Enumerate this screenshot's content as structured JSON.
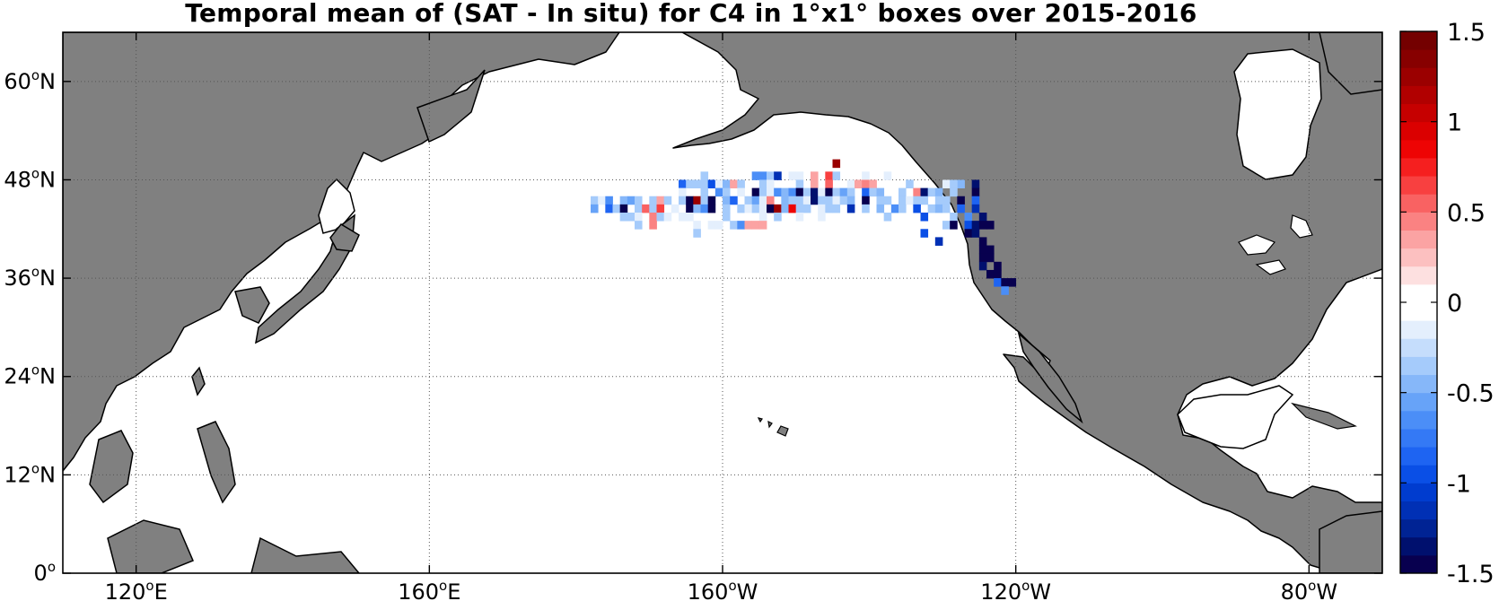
{
  "title": "Temporal mean of (SAT - In situ) for C4 in 1°x1° boxes over 2015-2016",
  "map": {
    "projection": "equirectangular",
    "lon_range": [
      110,
      -70
    ],
    "lat_range": [
      0,
      66
    ],
    "grid": true,
    "land_color": "#808080",
    "ocean_color": "#ffffff"
  },
  "axes": {
    "x_ticks": [
      {
        "lon": 120,
        "label": "120",
        "sup": "o",
        "hemi": "E"
      },
      {
        "lon": 160,
        "label": "160",
        "sup": "o",
        "hemi": "E"
      },
      {
        "lon": -160,
        "label": "160",
        "sup": "o",
        "hemi": "W"
      },
      {
        "lon": -120,
        "label": "120",
        "sup": "o",
        "hemi": "W"
      },
      {
        "lon": -80,
        "label": "80",
        "sup": "o",
        "hemi": "W"
      }
    ],
    "y_ticks": [
      {
        "lat": 0,
        "label": "0",
        "sup": "o",
        "hemi": ""
      },
      {
        "lat": 12,
        "label": "12",
        "sup": "o",
        "hemi": "N"
      },
      {
        "lat": 24,
        "label": "24",
        "sup": "o",
        "hemi": "N"
      },
      {
        "lat": 36,
        "label": "36",
        "sup": "o",
        "hemi": "N"
      },
      {
        "lat": 48,
        "label": "48",
        "sup": "o",
        "hemi": "N"
      },
      {
        "lat": 60,
        "label": "60",
        "sup": "o",
        "hemi": "N"
      }
    ]
  },
  "colorbar": {
    "range": [
      -1.5,
      1.5
    ],
    "tick_labels": [
      {
        "value": 1.5,
        "label": "1.5"
      },
      {
        "value": 1,
        "label": "1"
      },
      {
        "value": 0.5,
        "label": "0.5"
      },
      {
        "value": 0,
        "label": "0"
      },
      {
        "value": -0.5,
        "label": "-0.5"
      },
      {
        "value": -1,
        "label": "-1"
      },
      {
        "value": -1.5,
        "label": "-1.5"
      }
    ],
    "colors": [
      "#08004f",
      "#00106e",
      "#002394",
      "#0030b5",
      "#003ccf",
      "#0a4fe6",
      "#1e64f2",
      "#3479f5",
      "#4b8ef7",
      "#67a3f8",
      "#86b7f9",
      "#a5cbfb",
      "#c5ddfc",
      "#e4effd",
      "#ffffff",
      "#ffffff",
      "#fde0e0",
      "#fcc0c0",
      "#fba3a3",
      "#fa8282",
      "#f96262",
      "#f84040",
      "#f51f1f",
      "#ee0404",
      "#db0000",
      "#c60000",
      "#b10000",
      "#9b0000",
      "#870000",
      "#740000"
    ]
  },
  "chart_data": {
    "type": "heatmap",
    "title": "Temporal mean of (SAT - In situ) for C4 in 1°x1° boxes over 2015-2016",
    "x_ticks": [
      "120°E",
      "160°E",
      "160°W",
      "120°W",
      "80°W"
    ],
    "y_ticks": [
      "0°",
      "12°N",
      "24°N",
      "36°N",
      "48°N",
      "60°N"
    ],
    "color_range": [
      -1.5,
      1.5
    ],
    "colorbar_ticks": [
      "-1.5",
      "-1",
      "-0.5",
      "0",
      "0.5",
      "1",
      "1.5"
    ],
    "cells": [
      {
        "lon": -145,
        "lat": 49.5,
        "v": 1.2
      },
      {
        "lon": -163,
        "lat": 48.0,
        "v": -0.3
      },
      {
        "lon": -156,
        "lat": 48.0,
        "v": -0.7
      },
      {
        "lon": -155,
        "lat": 48.0,
        "v": -0.7
      },
      {
        "lon": -154,
        "lat": 48.0,
        "v": -0.4
      },
      {
        "lon": -153,
        "lat": 48.0,
        "v": -1.2
      },
      {
        "lon": -151,
        "lat": 48.0,
        "v": -0.1
      },
      {
        "lon": -150,
        "lat": 48.0,
        "v": -0.1
      },
      {
        "lon": -148,
        "lat": 48.0,
        "v": 0.3
      },
      {
        "lon": -146,
        "lat": 48.0,
        "v": 0.6
      },
      {
        "lon": -145,
        "lat": 48.0,
        "v": -0.3
      },
      {
        "lon": -141,
        "lat": 48.0,
        "v": -0.2
      },
      {
        "lon": -138,
        "lat": 48.0,
        "v": -0.2
      },
      {
        "lon": -135,
        "lat": 47.0,
        "v": -0.3
      },
      {
        "lon": -128,
        "lat": 47.0,
        "v": -0.5
      },
      {
        "lon": -126,
        "lat": 47.0,
        "v": -1.4
      },
      {
        "lon": -166,
        "lat": 47.0,
        "v": -0.8
      },
      {
        "lon": -165,
        "lat": 47.0,
        "v": -0.3
      },
      {
        "lon": -164,
        "lat": 47.0,
        "v": -0.3
      },
      {
        "lon": -163,
        "lat": 47.0,
        "v": -0.3
      },
      {
        "lon": -162,
        "lat": 47.0,
        "v": -0.9
      },
      {
        "lon": -161,
        "lat": 47.0,
        "v": -0.2
      },
      {
        "lon": -160,
        "lat": 47.0,
        "v": -0.5
      },
      {
        "lon": -159,
        "lat": 47.0,
        "v": 0.3
      },
      {
        "lon": -158,
        "lat": 47.0,
        "v": -0.3
      },
      {
        "lon": -155,
        "lat": 47.0,
        "v": -0.3
      },
      {
        "lon": -154,
        "lat": 47.0,
        "v": -0.1
      },
      {
        "lon": -150,
        "lat": 47.0,
        "v": -0.4
      },
      {
        "lon": -148,
        "lat": 47.0,
        "v": 0.3
      },
      {
        "lon": -146,
        "lat": 47.0,
        "v": 0.5
      },
      {
        "lon": -143,
        "lat": 47.0,
        "v": -0.2
      },
      {
        "lon": -142,
        "lat": 47.0,
        "v": 0.3
      },
      {
        "lon": -141,
        "lat": 47.0,
        "v": 0.4
      },
      {
        "lon": -140,
        "lat": 47.0,
        "v": 0.3
      },
      {
        "lon": -130,
        "lat": 47.0,
        "v": -0.2
      },
      {
        "lon": -129,
        "lat": 47.0,
        "v": -0.4
      },
      {
        "lon": -166,
        "lat": 46.0,
        "v": -0.1
      },
      {
        "lon": -163,
        "lat": 46.0,
        "v": -0.4
      },
      {
        "lon": -161,
        "lat": 46.0,
        "v": -0.7
      },
      {
        "lon": -160,
        "lat": 46.0,
        "v": -0.3
      },
      {
        "lon": -158,
        "lat": 46.0,
        "v": -0.2
      },
      {
        "lon": -156,
        "lat": 46.0,
        "v": -1.5
      },
      {
        "lon": -155,
        "lat": 46.0,
        "v": -0.3
      },
      {
        "lon": -154,
        "lat": 46.0,
        "v": -0.1
      },
      {
        "lon": -153,
        "lat": 46.0,
        "v": -0.7
      },
      {
        "lon": -152,
        "lat": 46.0,
        "v": -0.5
      },
      {
        "lon": -151,
        "lat": 46.0,
        "v": -0.7
      },
      {
        "lon": -150,
        "lat": 46.0,
        "v": -1.5
      },
      {
        "lon": -149,
        "lat": 46.0,
        "v": -0.3
      },
      {
        "lon": -148,
        "lat": 46.0,
        "v": -1.4
      },
      {
        "lon": -147,
        "lat": 46.0,
        "v": -0.2
      },
      {
        "lon": -146,
        "lat": 46.0,
        "v": -1.5
      },
      {
        "lon": -145,
        "lat": 46.0,
        "v": -0.3
      },
      {
        "lon": -144,
        "lat": 46.0,
        "v": -0.6
      },
      {
        "lon": -143,
        "lat": 46.0,
        "v": -0.4
      },
      {
        "lon": -141,
        "lat": 46.0,
        "v": -0.8
      },
      {
        "lon": -140,
        "lat": 46.0,
        "v": -0.3
      },
      {
        "lon": -139,
        "lat": 46.0,
        "v": -0.5
      },
      {
        "lon": -136,
        "lat": 46.0,
        "v": -0.3
      },
      {
        "lon": -134,
        "lat": 46.0,
        "v": 0.4
      },
      {
        "lon": -133,
        "lat": 46.0,
        "v": -1.4
      },
      {
        "lon": -132,
        "lat": 46.0,
        "v": -0.3
      },
      {
        "lon": -131,
        "lat": 46.0,
        "v": -0.5
      },
      {
        "lon": -129,
        "lat": 46.0,
        "v": -0.3
      },
      {
        "lon": -126,
        "lat": 46.0,
        "v": -1.5
      },
      {
        "lon": -178,
        "lat": 45.0,
        "v": -0.4
      },
      {
        "lon": -177,
        "lat": 45.0,
        "v": -0.2
      },
      {
        "lon": -176,
        "lat": 45.0,
        "v": -0.7
      },
      {
        "lon": -174,
        "lat": 45.0,
        "v": -0.5
      },
      {
        "lon": -173,
        "lat": 45.0,
        "v": -0.6
      },
      {
        "lon": -172,
        "lat": 45.0,
        "v": -0.3
      },
      {
        "lon": -170,
        "lat": 45.0,
        "v": -0.3
      },
      {
        "lon": -169,
        "lat": 45.0,
        "v": 0.3
      },
      {
        "lon": -168,
        "lat": 45.0,
        "v": -0.3
      },
      {
        "lon": -166,
        "lat": 45.0,
        "v": -0.3
      },
      {
        "lon": -165,
        "lat": 45.0,
        "v": -1.5
      },
      {
        "lon": -164,
        "lat": 45.0,
        "v": 1.3
      },
      {
        "lon": -163,
        "lat": 45.0,
        "v": -0.4
      },
      {
        "lon": -162,
        "lat": 45.0,
        "v": -1.5
      },
      {
        "lon": -160,
        "lat": 45.0,
        "v": -0.5
      },
      {
        "lon": -159,
        "lat": 45.0,
        "v": -0.8
      },
      {
        "lon": -157,
        "lat": 45.0,
        "v": -0.3
      },
      {
        "lon": -156,
        "lat": 45.0,
        "v": -0.6
      },
      {
        "lon": -155,
        "lat": 45.0,
        "v": -0.2
      },
      {
        "lon": -154,
        "lat": 45.0,
        "v": 0.4
      },
      {
        "lon": -152,
        "lat": 45.0,
        "v": -0.5
      },
      {
        "lon": -151,
        "lat": 45.0,
        "v": -0.3
      },
      {
        "lon": -150,
        "lat": 45.0,
        "v": -0.4
      },
      {
        "lon": -149,
        "lat": 45.0,
        "v": -0.2
      },
      {
        "lon": -148,
        "lat": 45.0,
        "v": -1.4
      },
      {
        "lon": -147,
        "lat": 45.0,
        "v": -0.3
      },
      {
        "lon": -146,
        "lat": 45.0,
        "v": -0.4
      },
      {
        "lon": -145,
        "lat": 45.0,
        "v": -0.2
      },
      {
        "lon": -144,
        "lat": 45.0,
        "v": -0.3
      },
      {
        "lon": -143,
        "lat": 45.0,
        "v": -0.5
      },
      {
        "lon": -141,
        "lat": 45.0,
        "v": -1.5
      },
      {
        "lon": -139,
        "lat": 45.0,
        "v": -0.3
      },
      {
        "lon": -138,
        "lat": 45.0,
        "v": -0.3
      },
      {
        "lon": -136,
        "lat": 45.0,
        "v": -0.3
      },
      {
        "lon": -135,
        "lat": 45.0,
        "v": -0.2
      },
      {
        "lon": -134,
        "lat": 45.0,
        "v": -0.3
      },
      {
        "lon": -133,
        "lat": 45.0,
        "v": -0.3
      },
      {
        "lon": -131,
        "lat": 45.0,
        "v": -0.4
      },
      {
        "lon": -130,
        "lat": 45.0,
        "v": -0.3
      },
      {
        "lon": -128,
        "lat": 45.0,
        "v": -1.5
      },
      {
        "lon": -126,
        "lat": 45.0,
        "v": -0.8
      },
      {
        "lon": -178,
        "lat": 44.0,
        "v": -0.6
      },
      {
        "lon": -176,
        "lat": 44.0,
        "v": -0.8
      },
      {
        "lon": -175,
        "lat": 44.0,
        "v": -0.4
      },
      {
        "lon": -174,
        "lat": 44.0,
        "v": -1.5
      },
      {
        "lon": -172,
        "lat": 44.0,
        "v": -0.4
      },
      {
        "lon": -171,
        "lat": 44.0,
        "v": 0.5
      },
      {
        "lon": -170,
        "lat": 44.0,
        "v": -0.3
      },
      {
        "lon": -169,
        "lat": 44.0,
        "v": 0.6
      },
      {
        "lon": -167,
        "lat": 44.0,
        "v": -0.2
      },
      {
        "lon": -165,
        "lat": 44.0,
        "v": -1.5
      },
      {
        "lon": -164,
        "lat": 44.0,
        "v": -0.5
      },
      {
        "lon": -163,
        "lat": 44.0,
        "v": -0.7
      },
      {
        "lon": -162,
        "lat": 44.0,
        "v": -1.5
      },
      {
        "lon": -160,
        "lat": 44.0,
        "v": -0.4
      },
      {
        "lon": -158,
        "lat": 44.0,
        "v": -0.3
      },
      {
        "lon": -157,
        "lat": 44.0,
        "v": -0.2
      },
      {
        "lon": -156,
        "lat": 44.0,
        "v": -0.4
      },
      {
        "lon": -155,
        "lat": 44.0,
        "v": -0.2
      },
      {
        "lon": -154,
        "lat": 44.0,
        "v": -1.5
      },
      {
        "lon": -153,
        "lat": 44.0,
        "v": 1.2
      },
      {
        "lon": -152,
        "lat": 44.0,
        "v": -0.5
      },
      {
        "lon": -151,
        "lat": 44.0,
        "v": 0.9
      },
      {
        "lon": -150,
        "lat": 44.0,
        "v": -0.3
      },
      {
        "lon": -149,
        "lat": 44.0,
        "v": -0.4
      },
      {
        "lon": -147,
        "lat": 44.0,
        "v": -0.2
      },
      {
        "lon": -146,
        "lat": 44.0,
        "v": -0.4
      },
      {
        "lon": -145,
        "lat": 44.0,
        "v": -0.3
      },
      {
        "lon": -143,
        "lat": 44.0,
        "v": -1.1
      },
      {
        "lon": -141,
        "lat": 44.0,
        "v": -0.3
      },
      {
        "lon": -139,
        "lat": 44.0,
        "v": -0.5
      },
      {
        "lon": -137,
        "lat": 44.0,
        "v": -0.7
      },
      {
        "lon": -136,
        "lat": 44.0,
        "v": -0.3
      },
      {
        "lon": -134,
        "lat": 44.0,
        "v": -1.0
      },
      {
        "lon": -132,
        "lat": 44.0,
        "v": -0.3
      },
      {
        "lon": -131,
        "lat": 44.0,
        "v": -0.5
      },
      {
        "lon": -130,
        "lat": 44.0,
        "v": -0.4
      },
      {
        "lon": -128,
        "lat": 44.0,
        "v": -0.8
      },
      {
        "lon": -126,
        "lat": 44.0,
        "v": -1.2
      },
      {
        "lon": -174,
        "lat": 43.0,
        "v": -0.4
      },
      {
        "lon": -173,
        "lat": 43.0,
        "v": -0.3
      },
      {
        "lon": -172,
        "lat": 43.0,
        "v": -0.2
      },
      {
        "lon": -170,
        "lat": 43.0,
        "v": 0.4
      },
      {
        "lon": -169,
        "lat": 43.0,
        "v": -0.4
      },
      {
        "lon": -168,
        "lat": 43.0,
        "v": -0.2
      },
      {
        "lon": -166,
        "lat": 43.0,
        "v": -0.2
      },
      {
        "lon": -165,
        "lat": 43.0,
        "v": -0.2
      },
      {
        "lon": -160,
        "lat": 43.0,
        "v": -0.3
      },
      {
        "lon": -155,
        "lat": 43.0,
        "v": -0.2
      },
      {
        "lon": -153,
        "lat": 43.0,
        "v": -0.3
      },
      {
        "lon": -150,
        "lat": 43.0,
        "v": -0.2
      },
      {
        "lon": -147,
        "lat": 43.0,
        "v": -0.2
      },
      {
        "lon": -138,
        "lat": 43.0,
        "v": -0.3
      },
      {
        "lon": -133,
        "lat": 43.0,
        "v": -1.0
      },
      {
        "lon": -129,
        "lat": 43.0,
        "v": -0.4
      },
      {
        "lon": -127,
        "lat": 43.0,
        "v": -0.7
      },
      {
        "lon": -125,
        "lat": 43.0,
        "v": -1.3
      },
      {
        "lon": -172,
        "lat": 42.0,
        "v": -0.3
      },
      {
        "lon": -170,
        "lat": 42.0,
        "v": 0.4
      },
      {
        "lon": -164,
        "lat": 42.0,
        "v": -0.2
      },
      {
        "lon": -162,
        "lat": 42.0,
        "v": -0.1
      },
      {
        "lon": -161,
        "lat": 42.0,
        "v": -0.2
      },
      {
        "lon": -159,
        "lat": 42.0,
        "v": -0.3
      },
      {
        "lon": -158,
        "lat": 42.0,
        "v": -0.7
      },
      {
        "lon": -157,
        "lat": 42.0,
        "v": 0.3
      },
      {
        "lon": -156,
        "lat": 42.0,
        "v": 0.3
      },
      {
        "lon": -155,
        "lat": 42.0,
        "v": 0.3
      },
      {
        "lon": -130,
        "lat": 42.0,
        "v": -0.4
      },
      {
        "lon": -129,
        "lat": 42.0,
        "v": -1.5
      },
      {
        "lon": -127,
        "lat": 42.0,
        "v": -0.9
      },
      {
        "lon": -126,
        "lat": 42.0,
        "v": -1.3
      },
      {
        "lon": -125,
        "lat": 42.0,
        "v": -1.5
      },
      {
        "lon": -124,
        "lat": 42.0,
        "v": -1.5
      },
      {
        "lon": -164,
        "lat": 41.0,
        "v": -0.3
      },
      {
        "lon": -133,
        "lat": 41.0,
        "v": -1.0
      },
      {
        "lon": -127,
        "lat": 41.0,
        "v": -1.5
      },
      {
        "lon": -126,
        "lat": 41.0,
        "v": -1.4
      },
      {
        "lon": -125,
        "lat": 40.0,
        "v": -1.5
      },
      {
        "lon": -131,
        "lat": 40.0,
        "v": -1.1
      },
      {
        "lon": -125,
        "lat": 39.0,
        "v": -1.5
      },
      {
        "lon": -124,
        "lat": 39.0,
        "v": -1.5
      },
      {
        "lon": -125,
        "lat": 38.0,
        "v": -1.5
      },
      {
        "lon": -124,
        "lat": 38.0,
        "v": -1.5
      },
      {
        "lon": -125,
        "lat": 37.0,
        "v": -1.4
      },
      {
        "lon": -123,
        "lat": 37.0,
        "v": -1.5
      },
      {
        "lon": -124,
        "lat": 36.0,
        "v": -1.5
      },
      {
        "lon": -123,
        "lat": 36.0,
        "v": -1.5
      },
      {
        "lon": -123,
        "lat": 35.0,
        "v": -0.8
      },
      {
        "lon": -122,
        "lat": 35.0,
        "v": -1.5
      },
      {
        "lon": -121,
        "lat": 35.0,
        "v": -1.5
      },
      {
        "lon": -122,
        "lat": 34.0,
        "v": -0.7
      }
    ]
  }
}
